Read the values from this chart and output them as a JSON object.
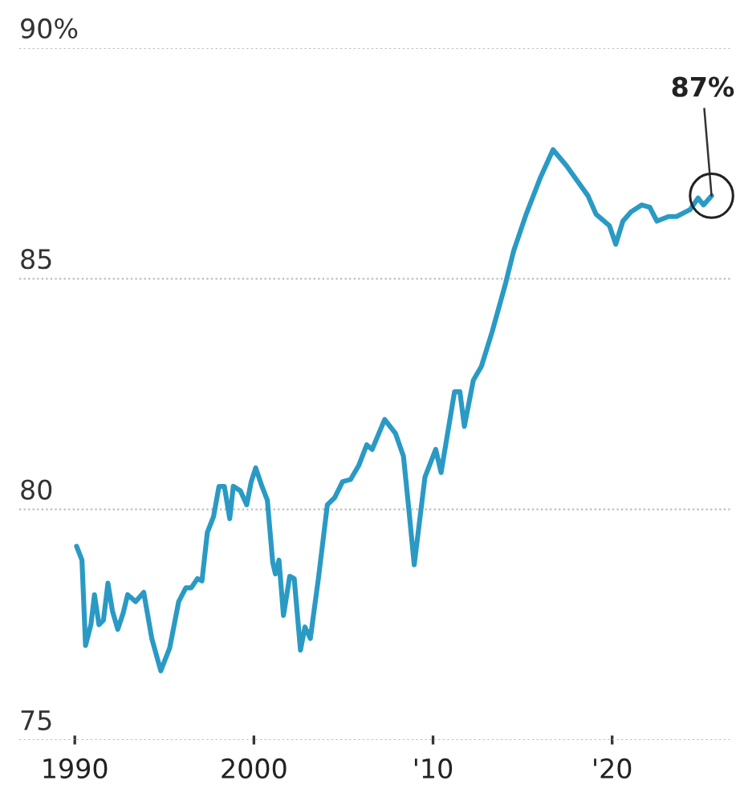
{
  "chart_data": {
    "type": "line",
    "x": [
      1990.1,
      1990.4,
      1990.6,
      1990.9,
      1991.1,
      1991.35,
      1991.6,
      1991.85,
      1992.1,
      1992.4,
      1992.7,
      1992.95,
      1993.4,
      1993.85,
      1994.3,
      1994.8,
      1995.3,
      1995.8,
      1996.2,
      1996.5,
      1996.85,
      1997.1,
      1997.4,
      1997.75,
      1998.05,
      1998.35,
      1998.65,
      1998.85,
      1999.25,
      1999.6,
      1999.85,
      2000.1,
      2000.45,
      2000.75,
      2001.05,
      2001.2,
      2001.4,
      2001.65,
      2002.0,
      2002.25,
      2002.6,
      2002.85,
      2003.15,
      2003.6,
      2004.1,
      2004.5,
      2004.95,
      2005.4,
      2005.85,
      2006.3,
      2006.6,
      2007.3,
      2007.9,
      2008.35,
      2008.65,
      2008.95,
      2009.55,
      2010.15,
      2010.45,
      2011.2,
      2011.5,
      2011.75,
      2012.25,
      2012.7,
      2013.3,
      2014.05,
      2014.5,
      2015.2,
      2016.0,
      2016.7,
      2017.45,
      2018.65,
      2019.1,
      2019.85,
      2020.2,
      2020.6,
      2021.05,
      2021.65,
      2022.1,
      2022.5,
      2023.15,
      2023.6,
      2024.35,
      2024.8,
      2025.1,
      2025.55
    ],
    "series": [
      {
        "color": "#2a9ac4",
        "values": [
          79.2,
          78.9,
          77.05,
          77.5,
          78.15,
          77.5,
          77.6,
          78.4,
          77.8,
          77.4,
          77.75,
          78.15,
          78.0,
          78.2,
          77.2,
          76.5,
          77.0,
          78.0,
          78.3,
          78.3,
          78.5,
          78.45,
          79.5,
          79.85,
          80.5,
          80.5,
          79.8,
          80.5,
          80.4,
          80.1,
          80.6,
          80.9,
          80.5,
          80.2,
          78.85,
          78.6,
          78.9,
          77.7,
          78.55,
          78.5,
          76.95,
          77.45,
          77.2,
          78.5,
          80.1,
          80.25,
          80.6,
          80.65,
          80.95,
          81.4,
          81.3,
          81.95,
          81.65,
          81.15,
          80.0,
          78.8,
          80.7,
          81.3,
          80.8,
          82.55,
          82.55,
          81.8,
          82.8,
          83.1,
          83.85,
          84.9,
          85.6,
          86.4,
          87.2,
          87.8,
          87.45,
          86.8,
          86.4,
          86.15,
          85.75,
          86.25,
          86.45,
          86.6,
          86.55,
          86.25,
          86.35,
          86.35,
          86.5,
          86.75,
          86.6,
          86.8
        ]
      }
    ],
    "xlim": [
      1986.9,
      2026.6
    ],
    "xticks": [
      {
        "value": 1990,
        "label": "1990"
      },
      {
        "value": 2000,
        "label": "2000"
      },
      {
        "value": 2010,
        "label": "'10"
      },
      {
        "value": 2020,
        "label": "'20"
      }
    ],
    "ylim": [
      75,
      90
    ],
    "yticks": [
      75,
      80,
      85,
      {
        "value": 90,
        "label": "90%"
      }
    ],
    "grid": "y",
    "annotations": [
      {
        "text": "87%",
        "x": 2025.55,
        "y": 86.8
      }
    ]
  }
}
